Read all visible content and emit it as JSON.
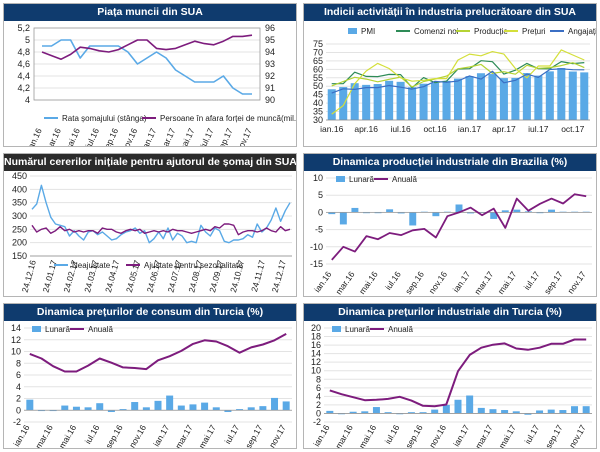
{
  "colors": {
    "title_bg": "#0f3b6e",
    "bar_blue": "#5aa9e6",
    "line_purple": "#7d1c7d",
    "line_green": "#2e8b57",
    "line_lime": "#b5d334",
    "line_blue": "#3b6fc4"
  },
  "chart_data": [
    {
      "id": "us_labor",
      "type": "line",
      "title": "Piața muncii din SUA",
      "x": [
        "ian.16",
        "feb.16",
        "mar.16",
        "apr.16",
        "mai.16",
        "iun.16",
        "iul.16",
        "aug.16",
        "sep.16",
        "oct.16",
        "nov.16",
        "dec.16",
        "ian.17",
        "feb.17",
        "mar.17",
        "apr.17",
        "mai.17",
        "iun.17",
        "iul.17",
        "aug.17",
        "sep.17",
        "oct.17",
        "nov.17"
      ],
      "xticks": [
        "ian.16",
        "mar.16",
        "mai.16",
        "iul.16",
        "sep.16",
        "nov.16",
        "ian.17",
        "mar.17",
        "mai.17",
        "iul.17",
        "sep.17",
        "nov.17"
      ],
      "y_left": {
        "ylim": [
          4.0,
          5.2
        ],
        "ticks": [
          "4",
          "4,2",
          "4,4",
          "4,6",
          "4,8",
          "5",
          "5,2"
        ]
      },
      "y_right": {
        "ylim": [
          90,
          96
        ],
        "ticks": [
          "90",
          "91",
          "92",
          "93",
          "94",
          "95",
          "96"
        ]
      },
      "legend_position": "bottom",
      "series": [
        {
          "name": "Rata șomajului (stânga)",
          "axis": "left",
          "color": "#5aa9e6",
          "values": [
            4.9,
            4.9,
            5.0,
            5.0,
            4.7,
            4.9,
            4.9,
            4.9,
            4.9,
            4.8,
            4.6,
            4.7,
            4.8,
            4.7,
            4.5,
            4.4,
            4.3,
            4.3,
            4.3,
            4.4,
            4.2,
            4.1,
            4.1
          ]
        },
        {
          "name": "Persoane în afara forței de muncă(mil.)",
          "axis": "right",
          "color": "#7d1c7d",
          "values": [
            94.0,
            93.7,
            93.4,
            93.8,
            94.4,
            94.3,
            94.1,
            94.0,
            94.2,
            94.6,
            95.0,
            95.0,
            94.3,
            94.2,
            94.3,
            94.6,
            94.9,
            94.7,
            94.6,
            94.9,
            95.3,
            95.3,
            95.4
          ]
        }
      ]
    },
    {
      "id": "us_pmi",
      "type": "bar",
      "title": "Indicii activității în industria prelucrătoare din SUA",
      "x": [
        "ian.16",
        "feb.16",
        "mar.16",
        "apr.16",
        "mai.16",
        "iun.16",
        "iul.16",
        "aug.16",
        "sep.16",
        "oct.16",
        "nov.16",
        "dec.16",
        "ian.17",
        "feb.17",
        "mar.17",
        "apr.17",
        "mai.17",
        "iun.17",
        "iul.17",
        "aug.17",
        "sep.17",
        "oct.17",
        "nov.17"
      ],
      "xticks": [
        "ian.16",
        "apr.16",
        "iul.16",
        "oct.16",
        "ian.17",
        "apr.17",
        "iul.17",
        "oct.17"
      ],
      "ylim": [
        30,
        75
      ],
      "yticks": [
        "30",
        "35",
        "40",
        "45",
        "50",
        "55",
        "60",
        "65",
        "70",
        "75"
      ],
      "legend_position": "top",
      "series": [
        {
          "name": "PMI",
          "kind": "bar",
          "color": "#5aa9e6",
          "values": [
            48.2,
            49.5,
            51.8,
            50.8,
            51.3,
            53.2,
            52.6,
            49.4,
            51.5,
            51.9,
            53.2,
            54.5,
            56.0,
            57.7,
            57.2,
            54.8,
            54.9,
            57.8,
            56.3,
            58.8,
            60.8,
            58.7,
            58.2
          ]
        },
        {
          "name": "Comenzi noi",
          "kind": "line",
          "color": "#2e8b57",
          "values": [
            51.5,
            51.5,
            58.3,
            55.8,
            55.7,
            57.0,
            56.9,
            49.1,
            55.1,
            52.1,
            53.0,
            60.2,
            60.4,
            65.1,
            64.5,
            57.2,
            59.5,
            63.5,
            60.4,
            60.3,
            64.6,
            63.4,
            64.0
          ]
        },
        {
          "name": "Producție",
          "kind": "line",
          "color": "#b5d334",
          "values": [
            50.2,
            52.8,
            55.3,
            54.2,
            52.6,
            54.1,
            55.4,
            49.6,
            52.8,
            54.3,
            56.0,
            60.3,
            61.4,
            62.9,
            57.6,
            58.6,
            57.1,
            62.4,
            60.6,
            61.0,
            62.2,
            63.9,
            61.0
          ]
        },
        {
          "name": "Prețuri",
          "kind": "line",
          "color": "#d4df3a",
          "values": [
            33.5,
            38.5,
            51.5,
            59.0,
            63.5,
            60.5,
            55.0,
            53.0,
            53.5,
            54.5,
            54.5,
            65.5,
            69.0,
            68.0,
            70.5,
            69.0,
            60.5,
            55.0,
            62.0,
            62.0,
            71.5,
            68.5,
            65.5
          ]
        },
        {
          "name": "Angajați",
          "kind": "line",
          "color": "#3b6fc4",
          "values": [
            45.9,
            48.5,
            48.1,
            49.2,
            49.2,
            50.4,
            49.4,
            48.3,
            49.7,
            52.9,
            52.3,
            53.1,
            56.1,
            54.2,
            58.9,
            52.0,
            53.5,
            57.2,
            55.2,
            59.9,
            60.3,
            59.8,
            59.7
          ]
        }
      ]
    },
    {
      "id": "us_claims",
      "type": "line",
      "title": "Numărul cererilor inițiale pentru ajutorul de șomaj din SUA (mii)",
      "xticks": [
        "24.12.16",
        "24.01.17",
        "24.02.17",
        "24.03.17",
        "24.04.17",
        "24.05.17",
        "24.06.17",
        "24.07.17",
        "24.08.17",
        "24.09.17",
        "24.10.17",
        "24.11.17",
        "24.12.17"
      ],
      "ylim": [
        150,
        450
      ],
      "yticks": [
        "150",
        "200",
        "250",
        "300",
        "350",
        "400",
        "450"
      ],
      "legend_position": "bottom",
      "series": [
        {
          "name": "Neajustate",
          "color": "#5aa9e6",
          "values": [
            325,
            345,
            415,
            350,
            295,
            270,
            265,
            260,
            225,
            245,
            225,
            210,
            240,
            245,
            230,
            240,
            225,
            210,
            215,
            230,
            240,
            245,
            255,
            235,
            245,
            200,
            215,
            240,
            215,
            255,
            210,
            235,
            225,
            200,
            205,
            200,
            265,
            240,
            225,
            255,
            245,
            205,
            200,
            210,
            210,
            215,
            230,
            220,
            270,
            240,
            255,
            285,
            330,
            280,
            320,
            350
          ]
        },
        {
          "name": "Ajustate pentru sezonalitate",
          "color": "#7d1c7d",
          "values": [
            265,
            240,
            250,
            255,
            235,
            245,
            260,
            245,
            250,
            240,
            245,
            240,
            245,
            245,
            235,
            255,
            250,
            250,
            240,
            235,
            245,
            250,
            245,
            250,
            235,
            240,
            245,
            240,
            245,
            240,
            250,
            245,
            245,
            240,
            235,
            240,
            245,
            250,
            245,
            260,
            255,
            270,
            270,
            265,
            230,
            240,
            245,
            245,
            240,
            245,
            255,
            245,
            240,
            260,
            245,
            250
          ]
        }
      ]
    },
    {
      "id": "br_industrial",
      "type": "bar",
      "title": "Dinamica producției industriale din Brazilia (%)",
      "x": [
        "ian.16",
        "feb.16",
        "mar.16",
        "apr.16",
        "mai.16",
        "iun.16",
        "iul.16",
        "aug.16",
        "sep.16",
        "oct.16",
        "nov.16",
        "dec.16",
        "ian.17",
        "feb.17",
        "mar.17",
        "apr.17",
        "mai.17",
        "iun.17",
        "iul.17",
        "aug.17",
        "sep.17",
        "oct.17",
        "nov.17"
      ],
      "xticks": [
        "ian.16",
        "mar.16",
        "mai.16",
        "iul.16",
        "sep.16",
        "nov.16",
        "ian.17",
        "mar.17",
        "mai.17",
        "iul.17",
        "sep.17",
        "nov.17"
      ],
      "ylim": [
        -15,
        10
      ],
      "yticks": [
        "-15",
        "-10",
        "-5",
        "0",
        "5",
        "10"
      ],
      "legend_position": "top-left",
      "series": [
        {
          "name": "Lunară",
          "kind": "bar",
          "color": "#5aa9e6",
          "values": [
            -0.5,
            -3.5,
            1.3,
            0.0,
            0.0,
            0.9,
            -0.3,
            -3.8,
            0.2,
            -1.1,
            0.2,
            2.3,
            -0.3,
            0.1,
            -1.9,
            0.6,
            0.8,
            0.3,
            -0.2,
            0.8,
            0.2,
            0.2,
            0.2
          ]
        },
        {
          "name": "Anuală",
          "kind": "line",
          "color": "#7d1c7d",
          "values": [
            -13.8,
            -10.0,
            -11.4,
            -6.9,
            -7.8,
            -6.0,
            -6.6,
            -5.2,
            -4.8,
            -7.3,
            -1.1,
            0.0,
            1.4,
            -0.8,
            1.1,
            -4.5,
            4.0,
            0.5,
            2.5,
            4.0,
            2.6,
            5.3,
            4.7
          ]
        }
      ]
    },
    {
      "id": "tr_cpi",
      "type": "bar",
      "title": "Dinamica prețurilor de consum din Turcia (%)",
      "x": [
        "ian.16",
        "feb.16",
        "mar.16",
        "apr.16",
        "mai.16",
        "iun.16",
        "iul.16",
        "aug.16",
        "sep.16",
        "oct.16",
        "nov.16",
        "dec.16",
        "ian.17",
        "feb.17",
        "mar.17",
        "apr.17",
        "mai.17",
        "iun.17",
        "iul.17",
        "aug.17",
        "sep.17",
        "oct.17",
        "nov.17"
      ],
      "xticks": [
        "ian.16",
        "mar.16",
        "mai.16",
        "iul.16",
        "sep.16",
        "nov.16",
        "ian.17",
        "mar.17",
        "mai.17",
        "iul.17",
        "sep.17",
        "nov.17"
      ],
      "ylim": [
        -2,
        14
      ],
      "yticks": [
        "-2",
        "0",
        "2",
        "4",
        "6",
        "8",
        "10",
        "12",
        "14"
      ],
      "legend_position": "top-left",
      "series": [
        {
          "name": "Lunară",
          "kind": "bar",
          "color": "#5aa9e6",
          "values": [
            1.8,
            -0.1,
            -0.0,
            0.8,
            0.6,
            0.5,
            1.2,
            -0.3,
            0.2,
            1.4,
            0.5,
            1.6,
            2.5,
            0.8,
            1.0,
            1.3,
            0.5,
            -0.3,
            0.2,
            0.5,
            0.7,
            2.1,
            1.5
          ]
        },
        {
          "name": "Anuală",
          "kind": "line",
          "color": "#7d1c7d",
          "values": [
            9.6,
            8.8,
            7.5,
            6.6,
            6.6,
            7.6,
            8.8,
            8.1,
            7.3,
            7.2,
            7.0,
            8.5,
            9.2,
            10.1,
            11.3,
            11.9,
            11.7,
            10.9,
            9.8,
            10.7,
            11.2,
            11.9,
            13.0
          ]
        }
      ]
    },
    {
      "id": "tr_ppi",
      "type": "bar",
      "title": "Dinamica prețurilor industriale din Turcia (%)",
      "x": [
        "ian.16",
        "feb.16",
        "mar.16",
        "apr.16",
        "mai.16",
        "iun.16",
        "iul.16",
        "aug.16",
        "sep.16",
        "oct.16",
        "nov.16",
        "dec.16",
        "ian.17",
        "feb.17",
        "mar.17",
        "apr.17",
        "mai.17",
        "iun.17",
        "iul.17",
        "aug.17",
        "sep.17",
        "oct.17",
        "nov.17"
      ],
      "xticks": [
        "ian.16",
        "mar.16",
        "mai.16",
        "iul.16",
        "sep.16",
        "nov.16",
        "ian.17",
        "mar.17",
        "mai.17",
        "iul.17",
        "sep.17",
        "nov.17"
      ],
      "ylim": [
        -2,
        20
      ],
      "yticks": [
        "-2",
        "0",
        "2",
        "4",
        "6",
        "8",
        "10",
        "12",
        "14",
        "16",
        "18",
        "20"
      ],
      "legend_position": "top-left",
      "series": [
        {
          "name": "Lunară",
          "kind": "bar",
          "color": "#5aa9e6",
          "values": [
            0.6,
            -0.1,
            0.4,
            0.5,
            1.5,
            0.3,
            0.0,
            0.3,
            0.3,
            0.9,
            2.0,
            3.2,
            4.2,
            1.3,
            1.0,
            0.8,
            0.5,
            -0.3,
            0.7,
            0.9,
            0.8,
            1.7,
            1.7
          ]
        },
        {
          "name": "Anuală",
          "kind": "line",
          "color": "#7d1c7d",
          "values": [
            5.4,
            4.5,
            3.8,
            3.1,
            3.2,
            3.4,
            3.9,
            3.0,
            1.8,
            1.7,
            2.1,
            9.9,
            13.7,
            15.4,
            16.1,
            16.4,
            15.2,
            14.9,
            15.4,
            16.3,
            16.3,
            17.3,
            17.3
          ]
        }
      ]
    }
  ]
}
